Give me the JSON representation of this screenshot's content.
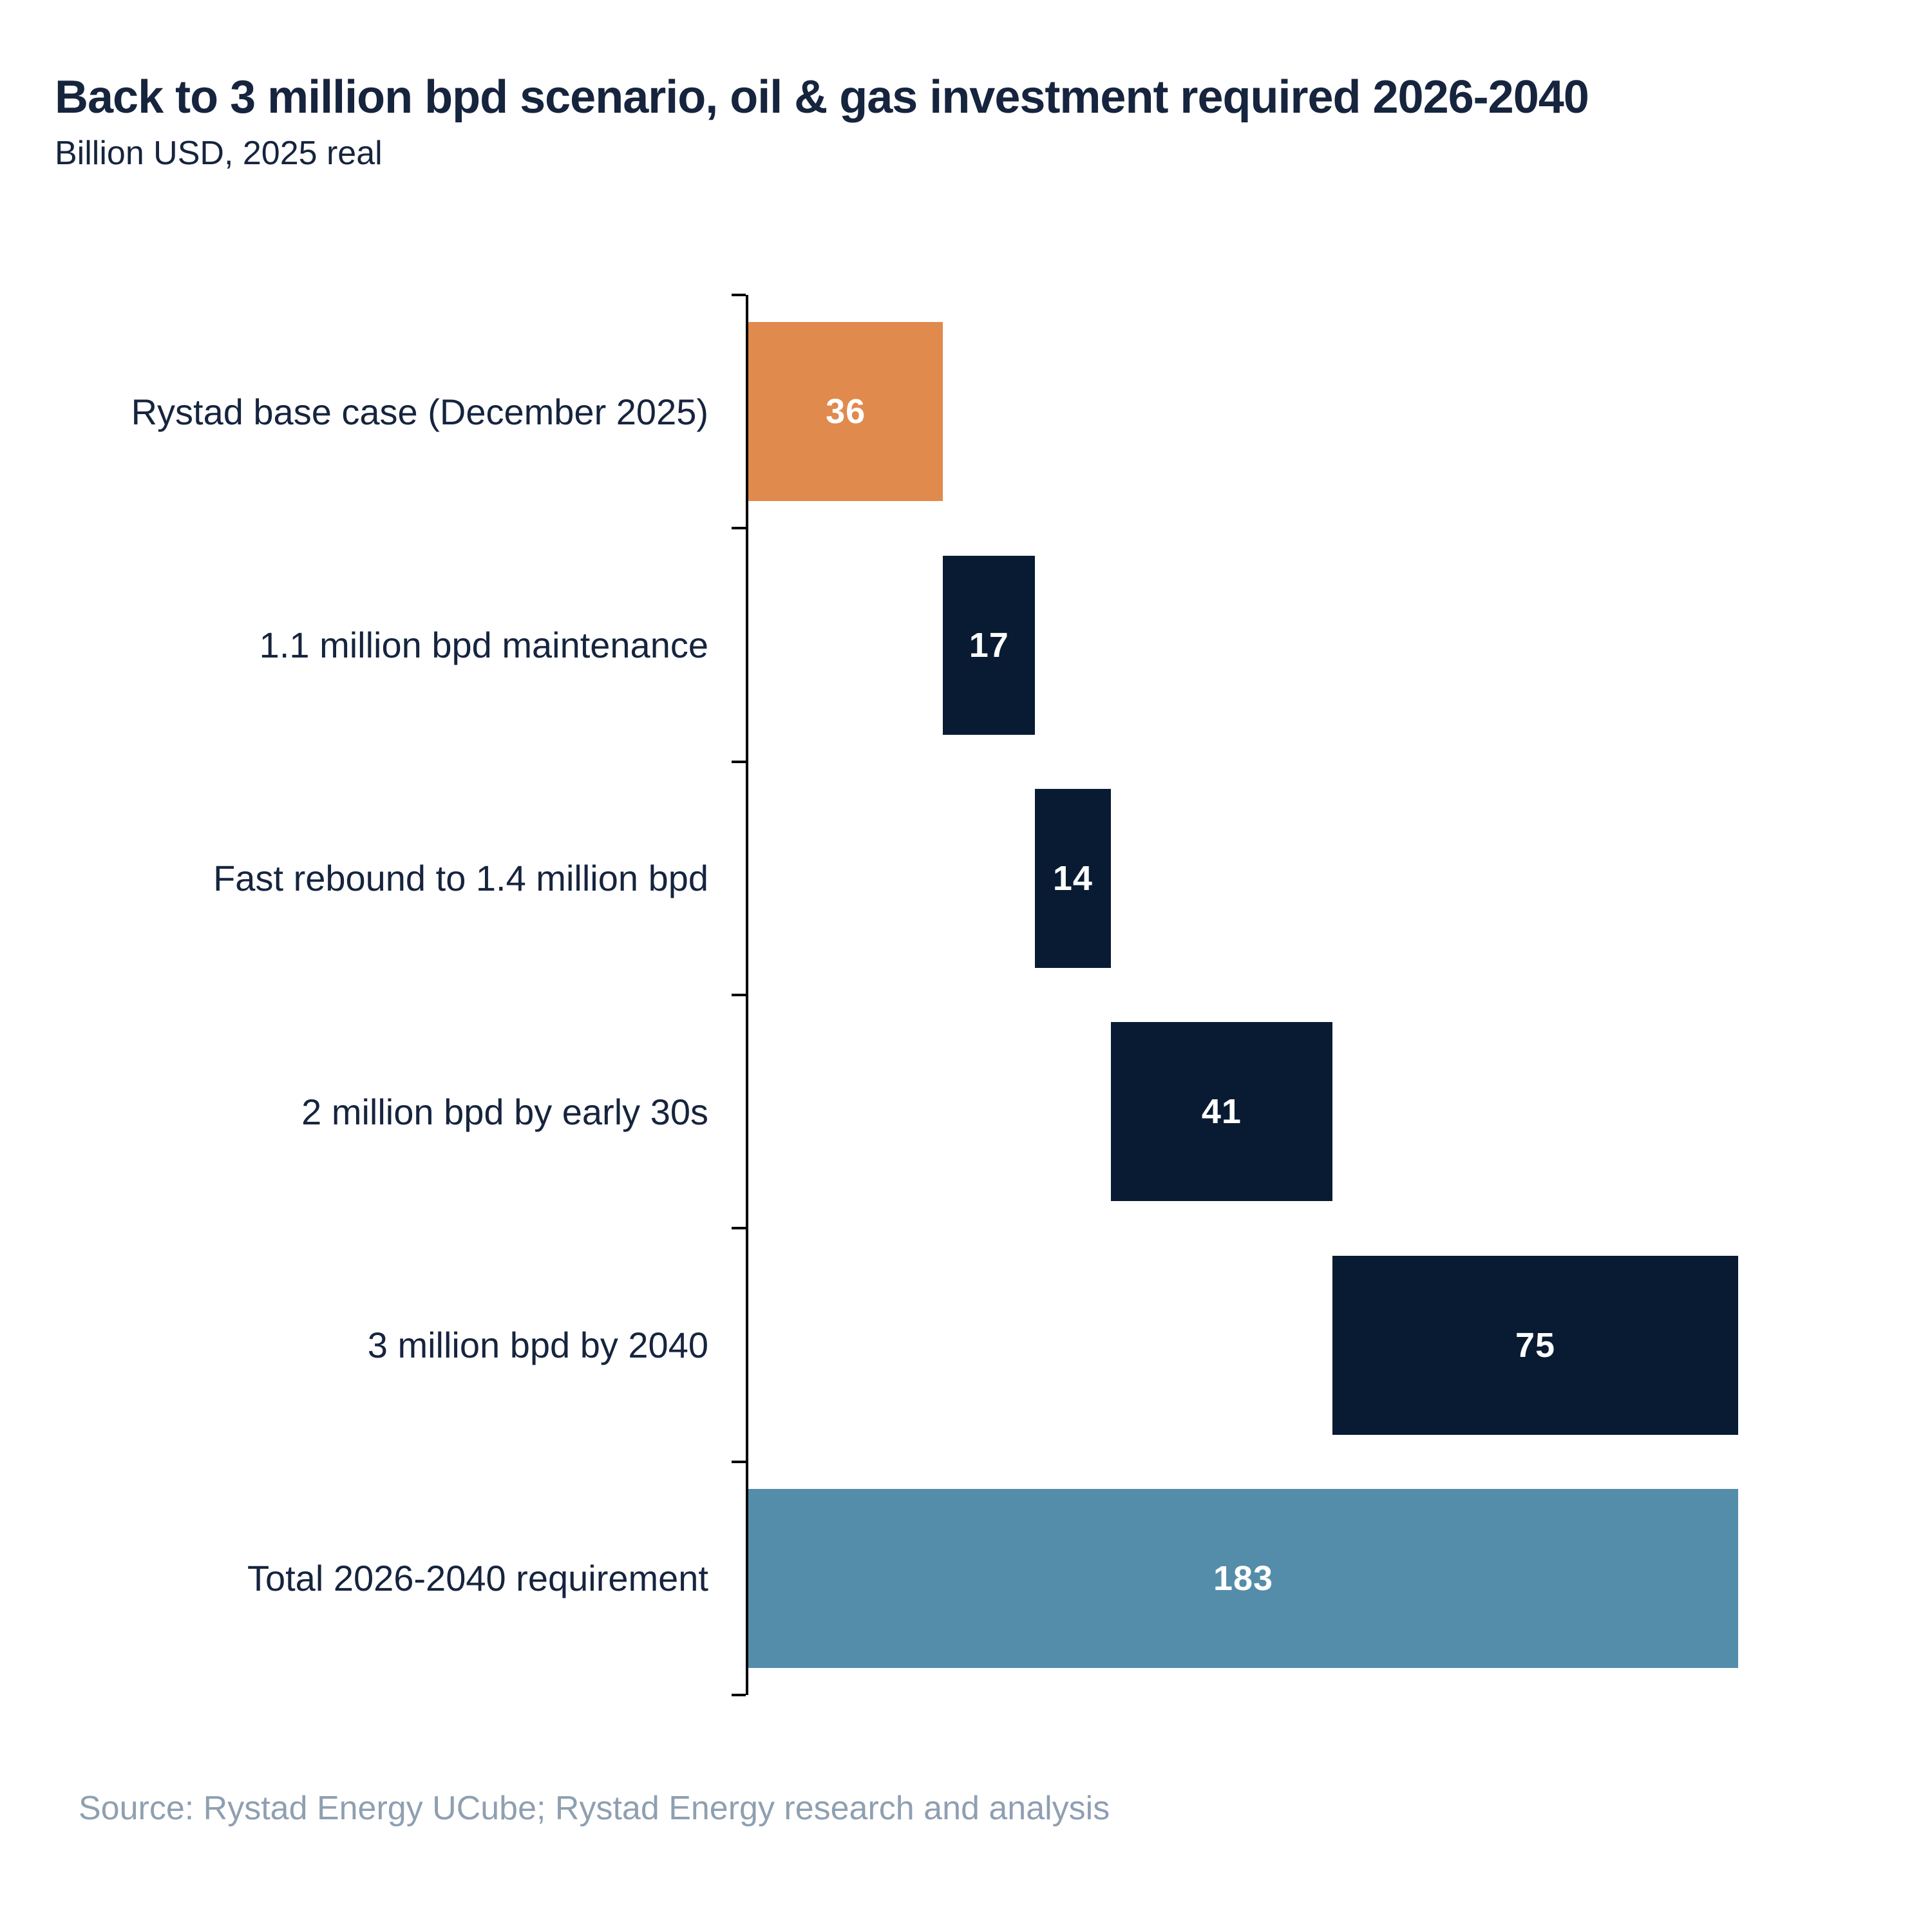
{
  "header": {
    "title": "Back to 3 million bpd scenario, oil & gas investment required 2026-2040",
    "subtitle": "Billion USD, 2025 real"
  },
  "footer": {
    "source": "Source: Rystad Energy UCube; Rystad Energy research and analysis"
  },
  "chart_data": {
    "type": "bar",
    "variant": "horizontal-waterfall",
    "title": "Back to 3 million bpd scenario, oil & gas investment required 2026-2040",
    "subtitle": "Billion USD, 2025 real",
    "unit": "Billion USD, 2025 real",
    "grid": false,
    "legend": "none",
    "value_axis": {
      "min": 0,
      "max": 183,
      "tick_labels_visible": false
    },
    "categories": [
      "Rystad base case (December 2025)",
      "1.1 million bpd maintenance",
      "Fast rebound to 1.4 million bpd",
      "2 million bpd by early 30s",
      "3 million bpd by 2040",
      "Total 2026-2040 requirement"
    ],
    "values": [
      36,
      17,
      14,
      41,
      75,
      183
    ],
    "items": [
      {
        "label": "Rystad base case (December 2025)",
        "value": 36,
        "color": "#E08A4D",
        "is_total": false
      },
      {
        "label": "1.1 million bpd maintenance",
        "value": 17,
        "color": "#081B33",
        "is_total": false
      },
      {
        "label": "Fast rebound to 1.4 million bpd",
        "value": 14,
        "color": "#081B33",
        "is_total": false
      },
      {
        "label": "2 million bpd by early 30s",
        "value": 41,
        "color": "#081B33",
        "is_total": false
      },
      {
        "label": "3 million bpd by 2040",
        "value": 75,
        "color": "#081B33",
        "is_total": false
      },
      {
        "label": "Total 2026-2040 requirement",
        "value": 183,
        "color": "#548DA9",
        "is_total": true
      }
    ],
    "colors": {
      "base_case_bar": "#E08A4D",
      "increment_bar": "#081B33",
      "total_bar": "#548DA9",
      "axis": "#000000",
      "heading_text": "#16243E",
      "source_text": "#8F9FB2",
      "value_label_text": "#FFFFFF"
    }
  }
}
